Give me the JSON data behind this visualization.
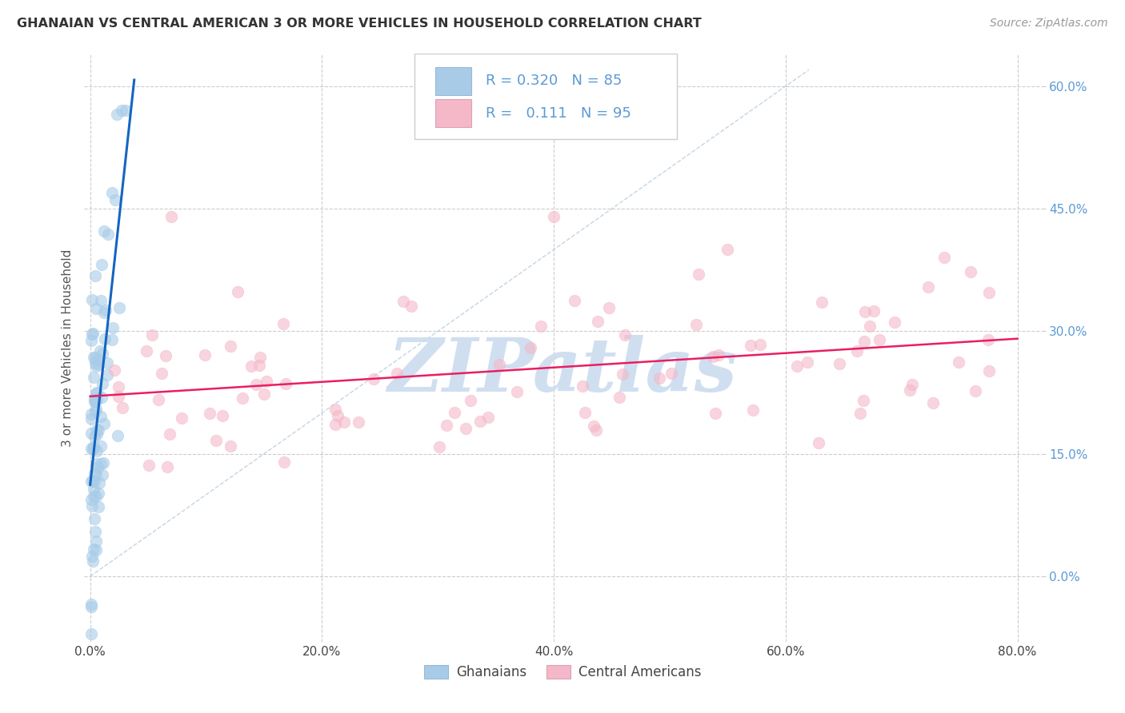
{
  "title": "GHANAIAN VS CENTRAL AMERICAN 3 OR MORE VEHICLES IN HOUSEHOLD CORRELATION CHART",
  "source": "Source: ZipAtlas.com",
  "ylabel": "3 or more Vehicles in Household",
  "legend_labels": [
    "Ghanaians",
    "Central Americans"
  ],
  "ghanaian_R": 0.32,
  "ghanaian_N": 85,
  "central_american_R": 0.111,
  "central_american_N": 95,
  "blue_color": "#a8cce8",
  "pink_color": "#f4b8c8",
  "blue_line_color": "#1565c0",
  "pink_line_color": "#e91e63",
  "diagonal_color": "#b8cfe0",
  "watermark_color": "#d0dff0",
  "xlim": [
    -0.005,
    0.82
  ],
  "ylim": [
    -0.08,
    0.64
  ],
  "xticks": [
    0.0,
    0.2,
    0.4,
    0.6,
    0.8
  ],
  "xticklabels": [
    "0.0%",
    "20.0%",
    "40.0%",
    "60.0%",
    "80.0%"
  ],
  "yticks": [
    0.0,
    0.15,
    0.3,
    0.45,
    0.6
  ],
  "yticklabels": [
    "0.0%",
    "15.0%",
    "30.0%",
    "45.0%",
    "60.0%"
  ]
}
